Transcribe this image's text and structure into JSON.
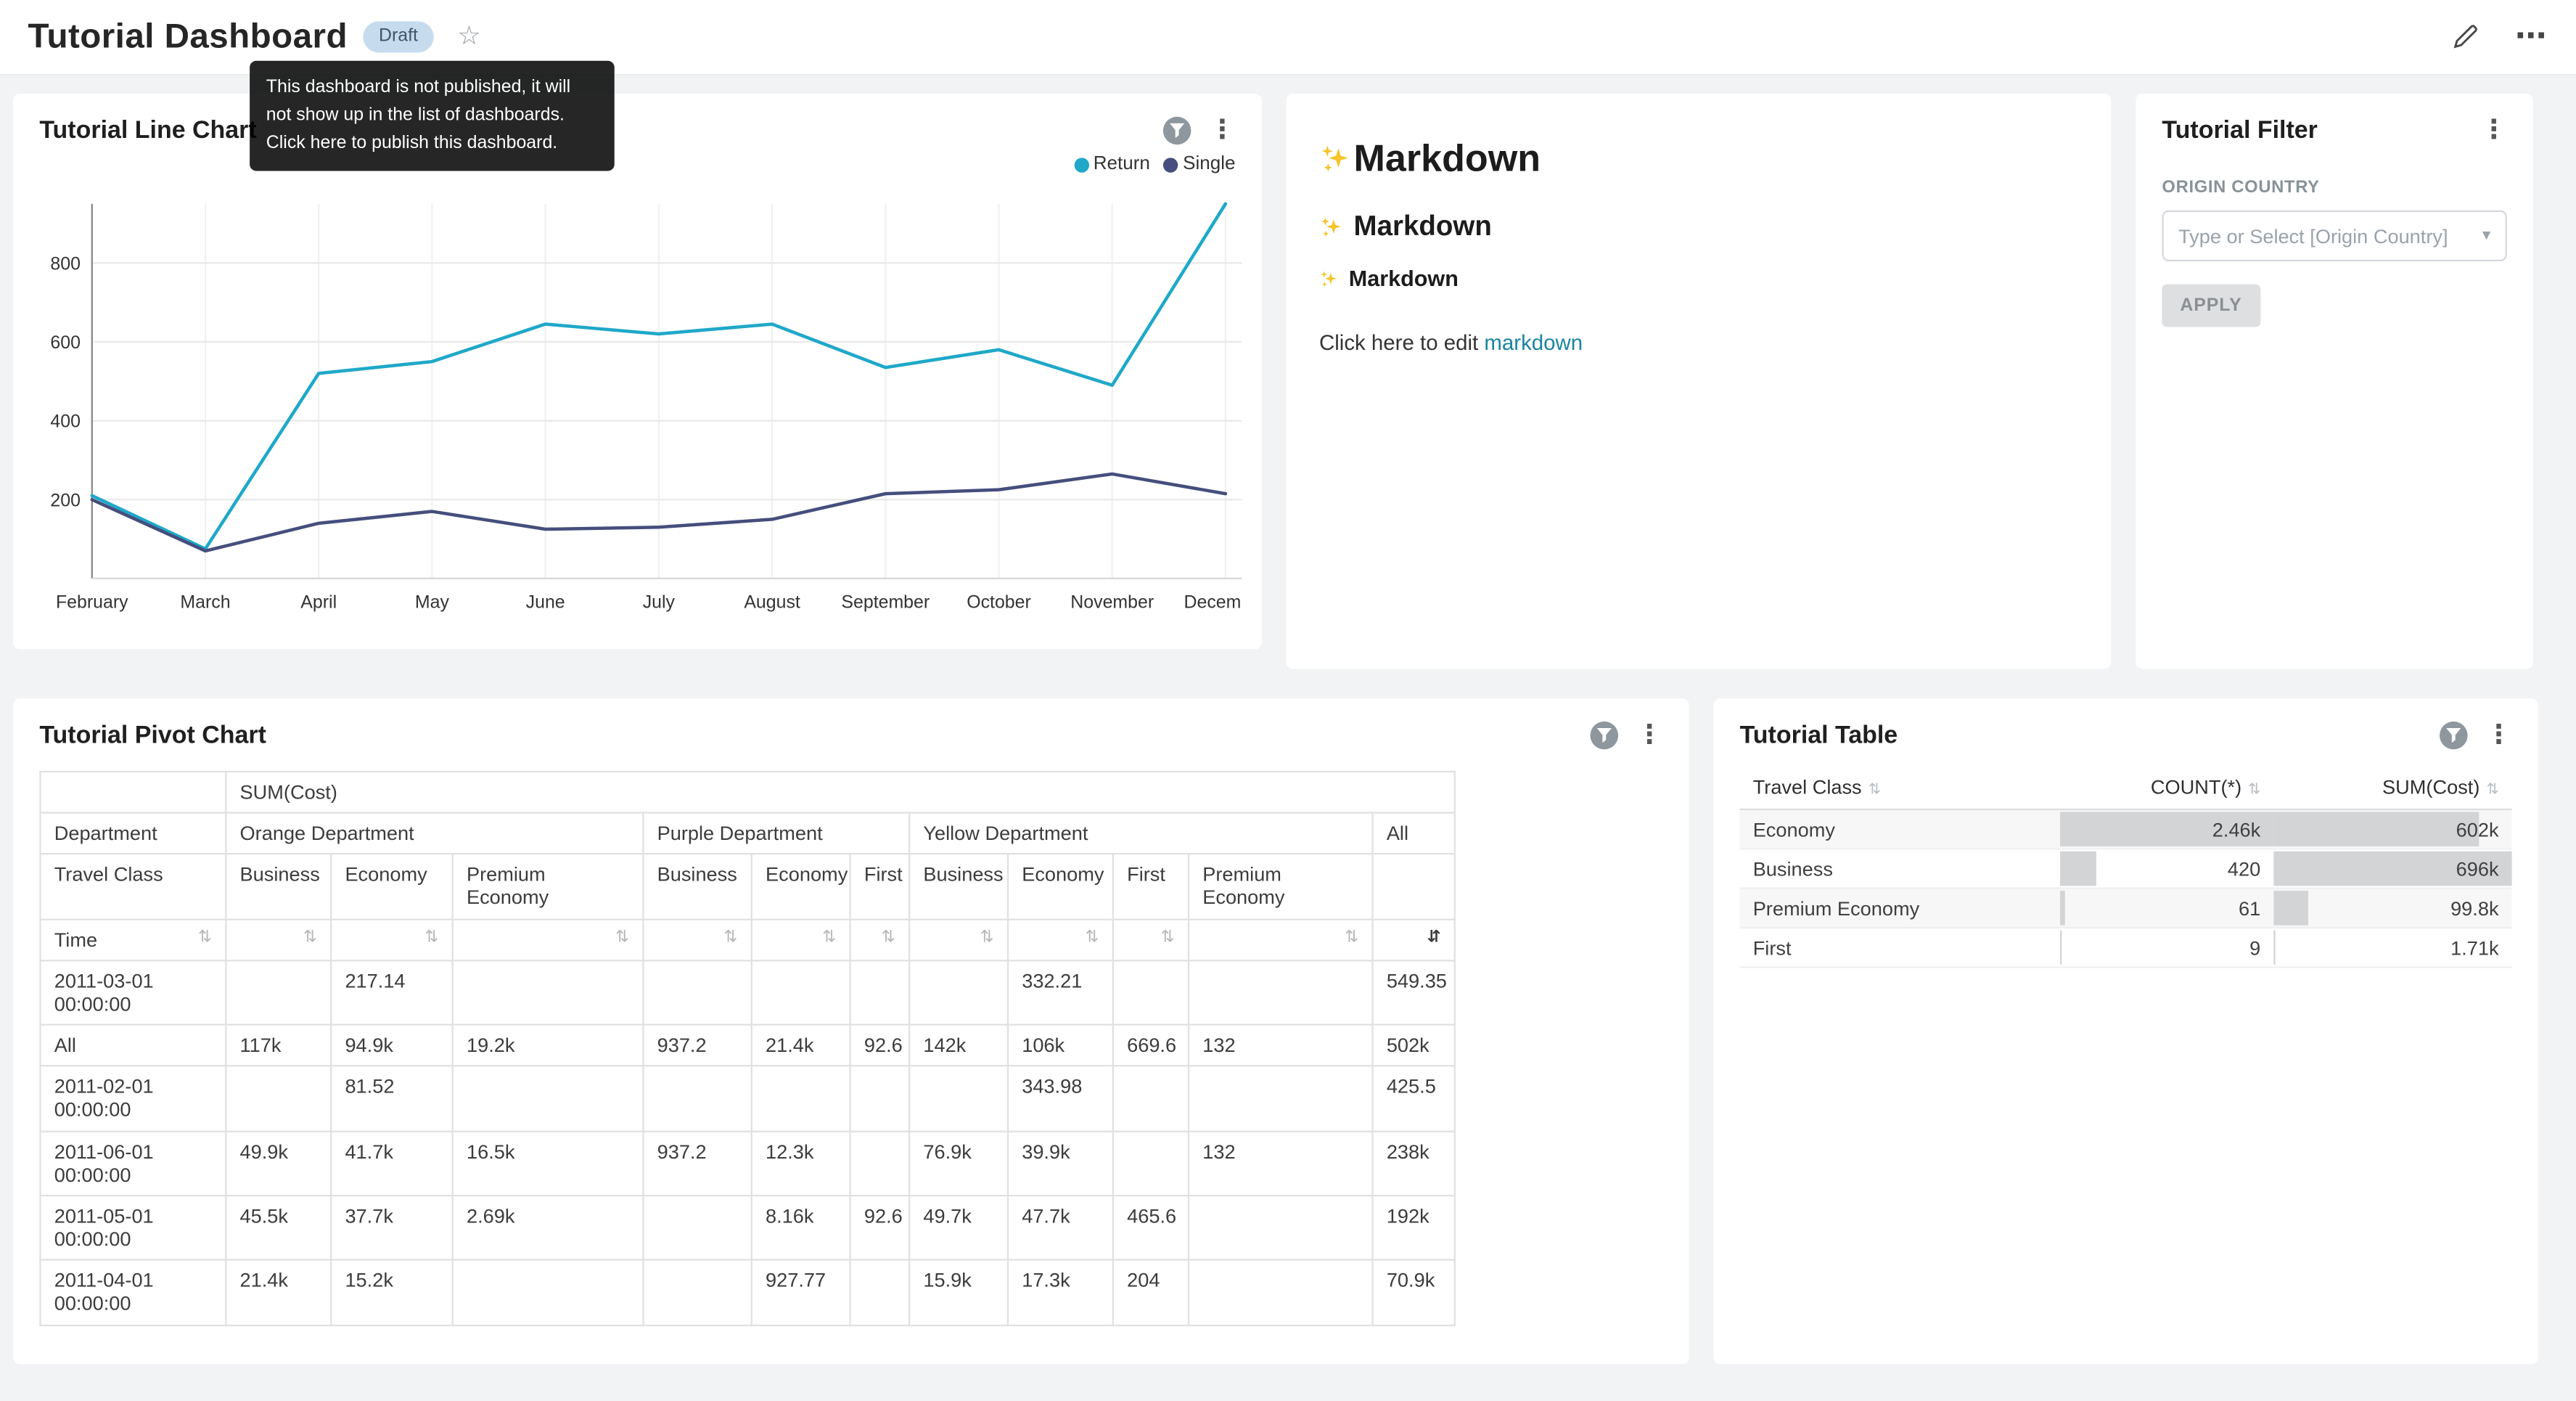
{
  "colors": {
    "accent": "#1FA8C9",
    "series2": "#454E7C",
    "link": "#1985a0",
    "page_bg": "#f2f3f5"
  },
  "header": {
    "title": "Tutorial Dashboard",
    "draft_badge": "Draft",
    "unpublished_tooltip": "This dashboard is not published, it will not show up in the list of dashboards. Click here to publish this dashboard."
  },
  "icons": {
    "kebab": "⋮",
    "ellipsis": "⋯",
    "star": "☆",
    "sort": "⇅",
    "sort_active": "⇵",
    "caret": "▾"
  },
  "markdown_card": {
    "h1": "Markdown",
    "h2": "Markdown",
    "h3": "Markdown",
    "edit_prefix": "Click here to edit ",
    "edit_link": "markdown"
  },
  "filter_card": {
    "title": "Tutorial Filter",
    "field_label": "ORIGIN COUNTRY",
    "select_placeholder": "Type or Select [Origin Country]",
    "apply_label": "APPLY"
  },
  "chart_data": [
    {
      "type": "line",
      "title": "Tutorial Line Chart",
      "x": [
        "February",
        "March",
        "April",
        "May",
        "June",
        "July",
        "August",
        "September",
        "October",
        "November",
        "December"
      ],
      "yticks": [
        200,
        400,
        600,
        800
      ],
      "ylim": [
        0,
        1000
      ],
      "grid": true,
      "legend_position": "top-right",
      "series": [
        {
          "name": "Return",
          "color": "#1FA8C9",
          "values": [
            210,
            75,
            520,
            550,
            645,
            620,
            645,
            535,
            580,
            490,
            950
          ]
        },
        {
          "name": "Single",
          "color": "#454E7C",
          "values": [
            200,
            70,
            140,
            170,
            125,
            130,
            150,
            215,
            225,
            265,
            215
          ]
        }
      ]
    },
    {
      "type": "table",
      "title": "Tutorial Pivot Chart",
      "measure_label": "SUM(Cost)",
      "corner": {
        "dept": "Department",
        "travel": "Travel Class",
        "time": "Time"
      },
      "col_groups": [
        {
          "label": "Orange Department",
          "cols": [
            "Business",
            "Economy",
            "Premium Economy"
          ]
        },
        {
          "label": "Purple Department",
          "cols": [
            "Business",
            "Economy",
            "First"
          ]
        },
        {
          "label": "Yellow Department",
          "cols": [
            "Business",
            "Economy",
            "First",
            "Premium Economy"
          ]
        },
        {
          "label": "All",
          "cols": [
            ""
          ]
        }
      ],
      "rows": [
        {
          "time": "2011-03-01 00:00:00",
          "values": [
            "",
            "217.14",
            "",
            "",
            "",
            "",
            "",
            "332.21",
            "",
            "",
            "549.35"
          ]
        },
        {
          "time": "All",
          "values": [
            "117k",
            "94.9k",
            "19.2k",
            "937.2",
            "21.4k",
            "92.6",
            "142k",
            "106k",
            "669.6",
            "132",
            "502k"
          ]
        },
        {
          "time": "2011-02-01 00:00:00",
          "values": [
            "",
            "81.52",
            "",
            "",
            "",
            "",
            "",
            "343.98",
            "",
            "",
            "425.5"
          ]
        },
        {
          "time": "2011-06-01 00:00:00",
          "values": [
            "49.9k",
            "41.7k",
            "16.5k",
            "937.2",
            "12.3k",
            "",
            "76.9k",
            "39.9k",
            "",
            "132",
            "238k"
          ]
        },
        {
          "time": "2011-05-01 00:00:00",
          "values": [
            "45.5k",
            "37.7k",
            "2.69k",
            "",
            "8.16k",
            "92.6",
            "49.7k",
            "47.7k",
            "465.6",
            "",
            "192k"
          ]
        },
        {
          "time": "2011-04-01 00:00:00",
          "values": [
            "21.4k",
            "15.2k",
            "",
            "",
            "927.77",
            "",
            "15.9k",
            "17.3k",
            "204",
            "",
            "70.9k"
          ]
        }
      ]
    },
    {
      "type": "table",
      "title": "Tutorial Table",
      "columns": [
        "Travel Class",
        "COUNT(*)",
        "SUM(Cost)"
      ],
      "rows": [
        {
          "travel_class": "Economy",
          "count": {
            "display": "2.46k",
            "value": 2460
          },
          "sum": {
            "display": "602k",
            "value": 602000
          }
        },
        {
          "travel_class": "Business",
          "count": {
            "display": "420",
            "value": 420
          },
          "sum": {
            "display": "696k",
            "value": 696000
          }
        },
        {
          "travel_class": "Premium Economy",
          "count": {
            "display": "61",
            "value": 61
          },
          "sum": {
            "display": "99.8k",
            "value": 99800
          }
        },
        {
          "travel_class": "First",
          "count": {
            "display": "9",
            "value": 9
          },
          "sum": {
            "display": "1.71k",
            "value": 1710
          }
        }
      ]
    }
  ]
}
